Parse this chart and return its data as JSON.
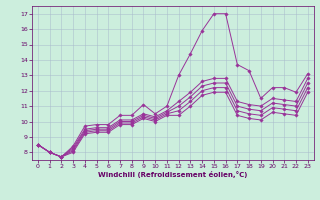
{
  "xlabel": "Windchill (Refroidissement éolien,°C)",
  "bg_color": "#cceedd",
  "line_color": "#993399",
  "xlim": [
    -0.5,
    23.5
  ],
  "ylim": [
    7.5,
    17.5
  ],
  "xticks": [
    0,
    1,
    2,
    3,
    4,
    5,
    6,
    7,
    8,
    9,
    10,
    11,
    12,
    13,
    14,
    15,
    16,
    17,
    18,
    19,
    20,
    21,
    22,
    23
  ],
  "yticks": [
    8,
    9,
    10,
    11,
    12,
    13,
    14,
    15,
    16,
    17
  ],
  "series": [
    {
      "x": [
        0,
        1,
        2,
        3,
        4,
        5,
        6,
        7,
        8,
        9,
        10,
        11,
        12,
        13,
        14,
        15,
        16,
        17,
        18,
        19,
        20,
        21,
        22,
        23
      ],
      "y": [
        8.5,
        8.0,
        7.7,
        8.4,
        9.7,
        9.8,
        9.8,
        10.4,
        10.4,
        11.1,
        10.5,
        11.0,
        13.0,
        14.4,
        15.9,
        17.0,
        17.0,
        13.7,
        13.3,
        11.5,
        12.2,
        12.2,
        11.9,
        13.1
      ]
    },
    {
      "x": [
        0,
        1,
        2,
        3,
        4,
        5,
        6,
        7,
        8,
        9,
        10,
        11,
        12,
        13,
        14,
        15,
        16,
        17,
        18,
        19,
        20,
        21,
        22,
        23
      ],
      "y": [
        8.5,
        8.0,
        7.7,
        8.3,
        9.5,
        9.6,
        9.6,
        10.1,
        10.1,
        10.5,
        10.3,
        10.7,
        11.3,
        11.9,
        12.6,
        12.8,
        12.8,
        11.3,
        11.1,
        11.0,
        11.5,
        11.4,
        11.3,
        12.8
      ]
    },
    {
      "x": [
        0,
        1,
        2,
        3,
        4,
        5,
        6,
        7,
        8,
        9,
        10,
        11,
        12,
        13,
        14,
        15,
        16,
        17,
        18,
        19,
        20,
        21,
        22,
        23
      ],
      "y": [
        8.5,
        8.0,
        7.7,
        8.2,
        9.4,
        9.5,
        9.5,
        10.0,
        10.0,
        10.4,
        10.2,
        10.6,
        11.0,
        11.6,
        12.3,
        12.5,
        12.5,
        11.0,
        10.8,
        10.7,
        11.2,
        11.1,
        11.0,
        12.5
      ]
    },
    {
      "x": [
        0,
        1,
        2,
        3,
        4,
        5,
        6,
        7,
        8,
        9,
        10,
        11,
        12,
        13,
        14,
        15,
        16,
        17,
        18,
        19,
        20,
        21,
        22,
        23
      ],
      "y": [
        8.5,
        8.0,
        7.7,
        8.1,
        9.3,
        9.4,
        9.4,
        9.9,
        9.9,
        10.3,
        10.1,
        10.5,
        10.7,
        11.3,
        12.0,
        12.2,
        12.2,
        10.7,
        10.5,
        10.4,
        10.9,
        10.8,
        10.7,
        12.2
      ]
    },
    {
      "x": [
        0,
        1,
        2,
        3,
        4,
        5,
        6,
        7,
        8,
        9,
        10,
        11,
        12,
        13,
        14,
        15,
        16,
        17,
        18,
        19,
        20,
        21,
        22,
        23
      ],
      "y": [
        8.5,
        8.0,
        7.7,
        8.0,
        9.2,
        9.3,
        9.3,
        9.8,
        9.8,
        10.2,
        10.0,
        10.4,
        10.4,
        11.0,
        11.7,
        11.9,
        11.9,
        10.4,
        10.2,
        10.1,
        10.6,
        10.5,
        10.4,
        11.9
      ]
    }
  ]
}
